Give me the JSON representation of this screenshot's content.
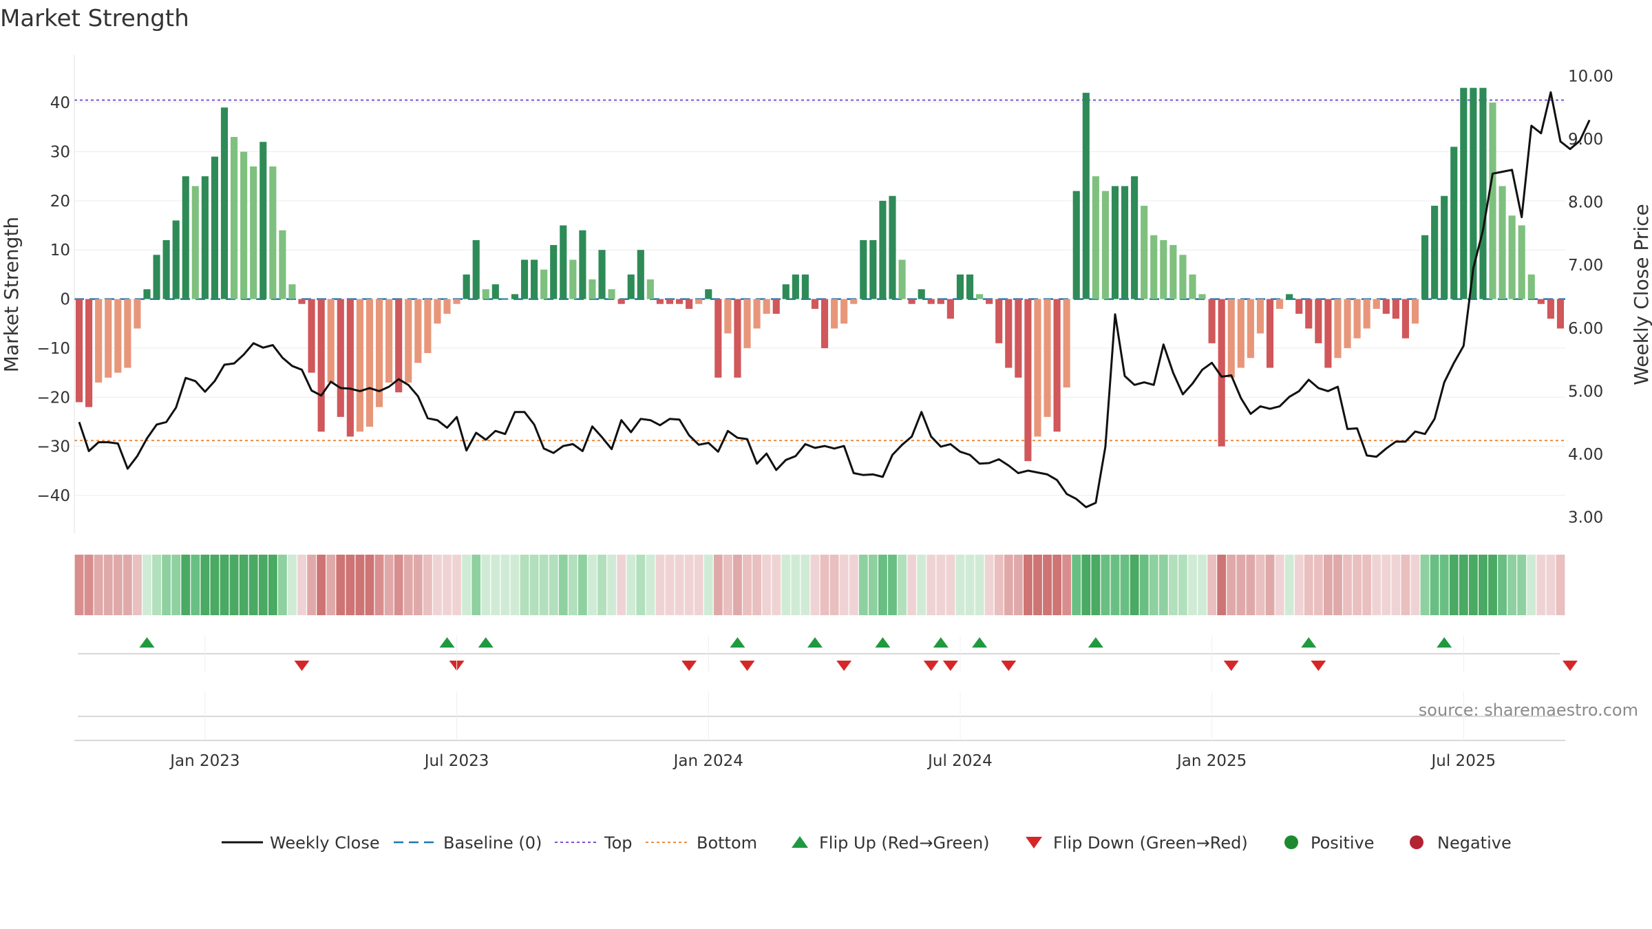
{
  "chart_data": {
    "type": "bar+line",
    "title": "Market Strength",
    "ylabel_left": "Market Strength",
    "ylabel_right": "Weekly Close Price",
    "ylim_left": [
      -47,
      48
    ],
    "ylim_right": [
      2.8,
      10.2
    ],
    "yticks_left": [
      40,
      30,
      20,
      10,
      0,
      -10,
      -20,
      -30,
      -40
    ],
    "yticks_left_labels": [
      "40",
      "30",
      "20",
      "10",
      "0",
      "−10",
      "−20",
      "−30",
      "−40"
    ],
    "yticks_right": [
      10,
      9,
      8,
      7,
      6,
      5,
      4,
      3
    ],
    "yticks_right_labels": [
      "10.00",
      "9.00",
      "8.00",
      "7.00",
      "6.00",
      "5.00",
      "4.00",
      "3.00"
    ],
    "top_line": 40.5,
    "bottom_line": -28.8,
    "x_start": "2022-09-30",
    "x_end": "2025-09-26",
    "x_ticks": [
      {
        "week": 13,
        "label": "Jan 2023"
      },
      {
        "week": 39,
        "label": "Jul 2023"
      },
      {
        "week": 65,
        "label": "Jan 2024"
      },
      {
        "week": 91,
        "label": "Jul 2024"
      },
      {
        "week": 117,
        "label": "Jan 2025"
      },
      {
        "week": 143,
        "label": "Jul 2025"
      }
    ],
    "strength": [
      -21,
      -22,
      -17,
      -16,
      -15,
      -14,
      -6,
      2,
      9,
      12,
      16,
      25,
      23,
      25,
      29,
      39,
      33,
      30,
      27,
      32,
      27,
      14,
      3,
      -1,
      -15,
      -27,
      -17,
      -24,
      -28,
      -27,
      -26,
      -22,
      -17,
      -19,
      -17,
      -13,
      -11,
      -5,
      -3,
      -1,
      5,
      12,
      2,
      3,
      0,
      1,
      8,
      8,
      6,
      11,
      15,
      8,
      14,
      4,
      10,
      2,
      -1,
      5,
      10,
      4,
      -1,
      -1,
      -1,
      -2,
      -1,
      2,
      -16,
      -7,
      -16,
      -10,
      -6,
      -3,
      -3,
      3,
      5,
      5,
      -2,
      -10,
      -6,
      -5,
      -1,
      12,
      12,
      20,
      21,
      8,
      -1,
      2,
      -1,
      -1,
      -4,
      5,
      5,
      1,
      -1,
      -9,
      -14,
      -16,
      -33,
      -28,
      -24,
      -27,
      -18,
      22,
      42,
      25,
      22,
      23,
      23,
      25,
      19,
      13,
      12,
      11,
      9,
      5,
      1,
      -9,
      -30,
      -16,
      -14,
      -12,
      -7,
      -14,
      -2,
      1,
      -3,
      -6,
      -9,
      -14,
      -12,
      -10,
      -8,
      -6,
      -2,
      -3,
      -4,
      -8,
      -5,
      13,
      19,
      21,
      31,
      43,
      43,
      43,
      40,
      23,
      17,
      15,
      5,
      -1,
      -4,
      -6
    ],
    "close": [
      4.51,
      4.05,
      4.19,
      4.19,
      4.17,
      3.77,
      3.97,
      4.25,
      4.47,
      4.51,
      4.74,
      5.21,
      5.16,
      4.99,
      5.16,
      5.42,
      5.44,
      5.58,
      5.76,
      5.69,
      5.73,
      5.53,
      5.4,
      5.34,
      5.01,
      4.93,
      5.15,
      5.05,
      5.04,
      5.0,
      5.05,
      5.0,
      5.07,
      5.19,
      5.1,
      4.92,
      4.57,
      4.54,
      4.42,
      4.59,
      4.06,
      4.34,
      4.23,
      4.37,
      4.32,
      4.67,
      4.67,
      4.47,
      4.09,
      4.02,
      4.13,
      4.16,
      4.05,
      4.44,
      4.27,
      4.08,
      4.54,
      4.35,
      4.56,
      4.54,
      4.46,
      4.56,
      4.55,
      4.3,
      4.15,
      4.18,
      4.04,
      4.37,
      4.26,
      4.24,
      3.85,
      4.01,
      3.75,
      3.91,
      3.97,
      4.16,
      4.1,
      4.13,
      4.09,
      4.13,
      3.7,
      3.67,
      3.68,
      3.64,
      3.99,
      4.15,
      4.28,
      4.67,
      4.28,
      4.12,
      4.16,
      4.04,
      3.99,
      3.85,
      3.86,
      3.92,
      3.82,
      3.7,
      3.74,
      3.71,
      3.68,
      3.59,
      3.37,
      3.29,
      3.16,
      3.23,
      4.12,
      6.22,
      5.24,
      5.1,
      5.14,
      5.1,
      5.74,
      5.29,
      4.95,
      5.12,
      5.34,
      5.45,
      5.23,
      5.25,
      4.89,
      4.64,
      4.76,
      4.72,
      4.76,
      4.91,
      5.0,
      5.18,
      5.05,
      5.0,
      5.07,
      4.4,
      4.41,
      3.98,
      3.96,
      4.09,
      4.2,
      4.2,
      4.36,
      4.32,
      4.56,
      5.14,
      5.45,
      5.72,
      6.95,
      7.55,
      8.45,
      8.48,
      8.51,
      7.76,
      9.21,
      9.09,
      9.74,
      8.96,
      8.84,
      8.97,
      9.3
    ],
    "flips_up": [
      7,
      38,
      42,
      68,
      76,
      83,
      89,
      93,
      105,
      127,
      141
    ],
    "flips_down": [
      23,
      39,
      63,
      69,
      79,
      88,
      90,
      96,
      119,
      128,
      154
    ]
  },
  "legend": [
    {
      "label": "Weekly Close",
      "marker": "line",
      "color": "#111111"
    },
    {
      "label": "Baseline (0)",
      "marker": "dash",
      "color": "#1f77b4"
    },
    {
      "label": "Top",
      "marker": "dot",
      "color": "#7b4fd1"
    },
    {
      "label": "Bottom",
      "marker": "dot",
      "color": "#f08c3e"
    },
    {
      "label": "Flip Up (Red→Green)",
      "marker": "triangle-up",
      "color": "#1f9a3f"
    },
    {
      "label": "Flip Down (Green→Red)",
      "marker": "triangle-down",
      "color": "#d62728"
    },
    {
      "label": "Positive",
      "marker": "circle",
      "color": "#1e8a2e"
    },
    {
      "label": "Negative",
      "marker": "circle",
      "color": "#b22333"
    }
  ],
  "source": "source: sharemaestro.com",
  "colors": {
    "pos_strong": "#2e8b57",
    "pos_weak": "#7fc07f",
    "neg_strong": "#d0575a",
    "neg_weak": "#e8967a",
    "baseline": "#1f77b4",
    "top": "#7b4fd1",
    "bottom": "#f08c3e",
    "close": "#111111",
    "flip_up": "#1f9a3f",
    "flip_down": "#d62728"
  }
}
